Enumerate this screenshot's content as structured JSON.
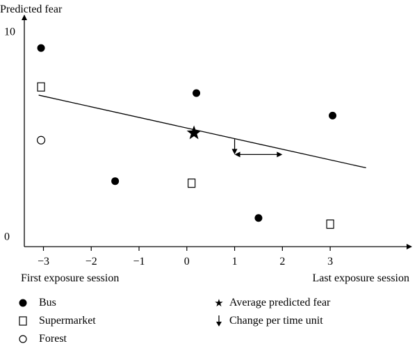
{
  "chart_data": {
    "type": "scatter",
    "ylabel": "Predicted fear",
    "x_ticks": [
      "−3",
      "−2",
      "−1",
      "0",
      "1",
      "2",
      "3"
    ],
    "y_ticks": [
      "0",
      "10"
    ],
    "xlim": [
      -3.4,
      4.7
    ],
    "ylim": [
      -0.5,
      10.8
    ],
    "x_caption_left": "First exposure session",
    "x_caption_right": "Last exposure session",
    "series": [
      {
        "name": "Bus",
        "marker": "filled-circle",
        "points": [
          [
            -3.05,
            9.2
          ],
          [
            -1.5,
            2.7
          ],
          [
            0.2,
            7.0
          ],
          [
            1.5,
            0.9
          ],
          [
            3.05,
            5.9
          ]
        ]
      },
      {
        "name": "Supermarket",
        "marker": "open-square",
        "points": [
          [
            -3.05,
            7.3
          ],
          [
            0.1,
            2.6
          ],
          [
            3.0,
            0.6
          ]
        ]
      },
      {
        "name": "Forest",
        "marker": "open-circle",
        "points": [
          [
            -3.05,
            4.7
          ]
        ]
      }
    ],
    "regression_line": {
      "x": [
        -3.1,
        3.75
      ],
      "y": [
        6.9,
        3.35
      ]
    },
    "average_point": {
      "x": 0.15,
      "y": 5.05
    },
    "change_annotation": {
      "arrow_down_x": 1.0,
      "arrow_down_y": [
        4.75,
        4.0
      ],
      "arrow_h_x": [
        1.0,
        2.0
      ],
      "arrow_h_y": 4.0
    },
    "legend": {
      "bus": "Bus",
      "supermarket": "Supermarket",
      "forest": "Forest",
      "average": "Average predicted fear",
      "change": "Change per time unit"
    }
  }
}
